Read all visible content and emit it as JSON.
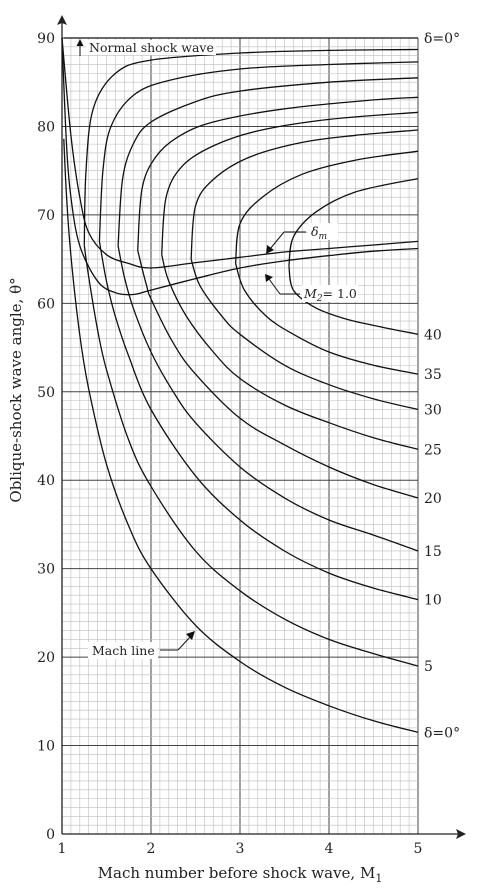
{
  "chart_data": {
    "type": "line",
    "xlabel": "Mach number before shock wave, M",
    "xlabel_sub": "1",
    "ylabel": "Oblique-shock wave angle, θ°",
    "xlim": [
      1,
      5
    ],
    "ylim": [
      0,
      90
    ],
    "x_ticks": [
      "1",
      "2",
      "3",
      "4",
      "5"
    ],
    "y_ticks": [
      "0",
      "10",
      "20",
      "30",
      "40",
      "50",
      "60",
      "70",
      "80",
      "90"
    ],
    "grid": true,
    "deflection_curves": [
      {
        "label": "δ = 0°",
        "points": [
          [
            1.02,
            78.6
          ],
          [
            1.05,
            72.2
          ],
          [
            1.1,
            65.4
          ],
          [
            1.2,
            56.4
          ],
          [
            1.3,
            50.3
          ],
          [
            1.5,
            41.8
          ],
          [
            1.75,
            34.8
          ],
          [
            2.0,
            30.0
          ],
          [
            2.5,
            23.6
          ],
          [
            3.0,
            19.5
          ],
          [
            3.5,
            16.6
          ],
          [
            4.0,
            14.5
          ],
          [
            4.5,
            12.8
          ],
          [
            5.0,
            11.5
          ]
        ],
        "upper": [
          [
            1.02,
            90
          ],
          [
            1.5,
            90
          ],
          [
            2.0,
            90
          ],
          [
            3.0,
            90
          ],
          [
            4.0,
            90
          ],
          [
            5.0,
            90
          ]
        ],
        "top_label": "δ=0°",
        "bottom_label": "δ=0°"
      },
      {
        "label": "δ = 5°",
        "points": [
          [
            1.25,
            66.5
          ],
          [
            1.3,
            63.0
          ],
          [
            1.4,
            57.0
          ],
          [
            1.5,
            52.5
          ],
          [
            1.75,
            44.5
          ],
          [
            2.0,
            39.3
          ],
          [
            2.5,
            32.0
          ],
          [
            3.0,
            27.5
          ],
          [
            3.5,
            24.3
          ],
          [
            4.0,
            22.0
          ],
          [
            4.5,
            20.4
          ],
          [
            5.0,
            19.0
          ]
        ],
        "upper": [
          [
            1.25,
            66.5
          ],
          [
            1.27,
            75
          ],
          [
            1.35,
            82
          ],
          [
            1.6,
            86
          ],
          [
            2.0,
            87.5
          ],
          [
            3.0,
            88.3
          ],
          [
            4.0,
            88.6
          ],
          [
            5.0,
            88.7
          ]
        ],
        "bottom_label": "5"
      },
      {
        "label": "δ = 10°",
        "points": [
          [
            1.42,
            67.0
          ],
          [
            1.5,
            62.5
          ],
          [
            1.6,
            58.5
          ],
          [
            1.75,
            54.0
          ],
          [
            2.0,
            48.0
          ],
          [
            2.5,
            40.5
          ],
          [
            3.0,
            35.5
          ],
          [
            3.5,
            32.0
          ],
          [
            4.0,
            29.5
          ],
          [
            4.5,
            27.8
          ],
          [
            5.0,
            26.5
          ]
        ],
        "upper": [
          [
            1.42,
            67.0
          ],
          [
            1.46,
            75
          ],
          [
            1.55,
            80
          ],
          [
            1.8,
            83.5
          ],
          [
            2.2,
            85.2
          ],
          [
            3.0,
            86.5
          ],
          [
            4.0,
            87.0
          ],
          [
            5.0,
            87.3
          ]
        ],
        "bottom_label": "10"
      },
      {
        "label": "δ = 15°",
        "points": [
          [
            1.63,
            66.5
          ],
          [
            1.7,
            63.0
          ],
          [
            1.8,
            59.5
          ],
          [
            2.0,
            54.5
          ],
          [
            2.25,
            50.0
          ],
          [
            2.5,
            46.5
          ],
          [
            3.0,
            41.5
          ],
          [
            3.5,
            38.0
          ],
          [
            4.0,
            35.5
          ],
          [
            4.5,
            33.8
          ],
          [
            5.0,
            32.0
          ]
        ],
        "upper": [
          [
            1.63,
            66.5
          ],
          [
            1.68,
            74
          ],
          [
            1.8,
            78
          ],
          [
            2.0,
            80.5
          ],
          [
            2.5,
            82.8
          ],
          [
            3.0,
            84.0
          ],
          [
            4.0,
            85.0
          ],
          [
            5.0,
            85.5
          ]
        ],
        "bottom_label": "15"
      },
      {
        "label": "δ = 20°",
        "points": [
          [
            1.85,
            66.0
          ],
          [
            1.95,
            62.0
          ],
          [
            2.0,
            60.5
          ],
          [
            2.25,
            55.5
          ],
          [
            2.5,
            52.0
          ],
          [
            3.0,
            47.0
          ],
          [
            3.5,
            44.0
          ],
          [
            4.0,
            41.5
          ],
          [
            4.5,
            39.5
          ],
          [
            5.0,
            38.0
          ]
        ],
        "upper": [
          [
            1.85,
            66.0
          ],
          [
            1.9,
            73
          ],
          [
            2.05,
            76.5
          ],
          [
            2.3,
            78.8
          ],
          [
            2.7,
            80.5
          ],
          [
            3.5,
            82.0
          ],
          [
            4.5,
            83.0
          ],
          [
            5.0,
            83.3
          ]
        ],
        "bottom_label": "20"
      },
      {
        "label": "δ = 25°",
        "points": [
          [
            2.12,
            65.5
          ],
          [
            2.2,
            62.5
          ],
          [
            2.4,
            58.5
          ],
          [
            2.7,
            54.5
          ],
          [
            3.0,
            51.5
          ],
          [
            3.5,
            48.5
          ],
          [
            4.0,
            46.5
          ],
          [
            4.5,
            44.8
          ],
          [
            5.0,
            43.5
          ]
        ],
        "upper": [
          [
            2.12,
            65.5
          ],
          [
            2.17,
            72
          ],
          [
            2.35,
            75.5
          ],
          [
            2.7,
            77.8
          ],
          [
            3.2,
            79.5
          ],
          [
            4.0,
            80.8
          ],
          [
            5.0,
            81.6
          ]
        ],
        "bottom_label": "25"
      },
      {
        "label": "δ = 30°",
        "points": [
          [
            2.45,
            65.0
          ],
          [
            2.55,
            62.0
          ],
          [
            2.8,
            58.5
          ],
          [
            3.0,
            56.5
          ],
          [
            3.5,
            53.0
          ],
          [
            4.0,
            50.8
          ],
          [
            4.5,
            49.2
          ],
          [
            5.0,
            48.0
          ]
        ],
        "upper": [
          [
            2.45,
            65.0
          ],
          [
            2.5,
            71
          ],
          [
            2.7,
            74
          ],
          [
            3.1,
            76.5
          ],
          [
            3.7,
            78.2
          ],
          [
            4.3,
            79.0
          ],
          [
            5.0,
            79.6
          ]
        ],
        "bottom_label": "30"
      },
      {
        "label": "δ = 35°",
        "points": [
          [
            2.95,
            64.5
          ],
          [
            3.05,
            61.5
          ],
          [
            3.3,
            58.5
          ],
          [
            3.6,
            56.5
          ],
          [
            4.0,
            54.5
          ],
          [
            4.5,
            53.0
          ],
          [
            5.0,
            52.0
          ]
        ],
        "upper": [
          [
            2.95,
            64.5
          ],
          [
            3.0,
            69
          ],
          [
            3.25,
            72
          ],
          [
            3.7,
            74.6
          ],
          [
            4.3,
            76.2
          ],
          [
            5.0,
            77.2
          ]
        ],
        "bottom_label": "35"
      },
      {
        "label": "δ = 40°",
        "points": [
          [
            3.55,
            64.2
          ],
          [
            3.6,
            61.5
          ],
          [
            3.85,
            59.5
          ],
          [
            4.2,
            58.2
          ],
          [
            4.6,
            57.3
          ],
          [
            5.0,
            56.5
          ]
        ],
        "upper": [
          [
            3.55,
            64.2
          ],
          [
            3.6,
            67.5
          ],
          [
            3.85,
            70.3
          ],
          [
            4.3,
            72.6
          ],
          [
            5.0,
            74.1
          ]
        ],
        "bottom_label": "40"
      }
    ],
    "boundary_curves": [
      {
        "label": "δm",
        "points": [
          [
            1.0,
            90.0
          ],
          [
            1.1,
            79.0
          ],
          [
            1.2,
            72.0
          ],
          [
            1.3,
            68.0
          ],
          [
            1.5,
            65.5
          ],
          [
            1.75,
            64.5
          ],
          [
            2.0,
            64.0
          ],
          [
            2.5,
            64.6
          ],
          [
            3.0,
            65.2
          ],
          [
            3.5,
            65.8
          ],
          [
            4.0,
            66.2
          ],
          [
            4.5,
            66.6
          ],
          [
            5.0,
            67.0
          ]
        ]
      },
      {
        "label": "M2 = 1.0",
        "points": [
          [
            1.0,
            90.0
          ],
          [
            1.05,
            78.0
          ],
          [
            1.1,
            72.0
          ],
          [
            1.2,
            66.5
          ],
          [
            1.4,
            62.5
          ],
          [
            1.6,
            61.2
          ],
          [
            1.8,
            61.0
          ],
          [
            2.0,
            61.5
          ],
          [
            2.5,
            62.8
          ],
          [
            3.0,
            64.0
          ],
          [
            3.5,
            64.8
          ],
          [
            4.0,
            65.4
          ],
          [
            4.5,
            65.9
          ],
          [
            5.0,
            66.2
          ]
        ]
      }
    ],
    "annotations": {
      "normal_shock": "Normal shock wave",
      "delta_m": "δ",
      "delta_m_sub": "m",
      "m2": "M",
      "m2_sub": "2",
      "m2_value": "= 1.0",
      "mach_line": "Mach line"
    }
  }
}
